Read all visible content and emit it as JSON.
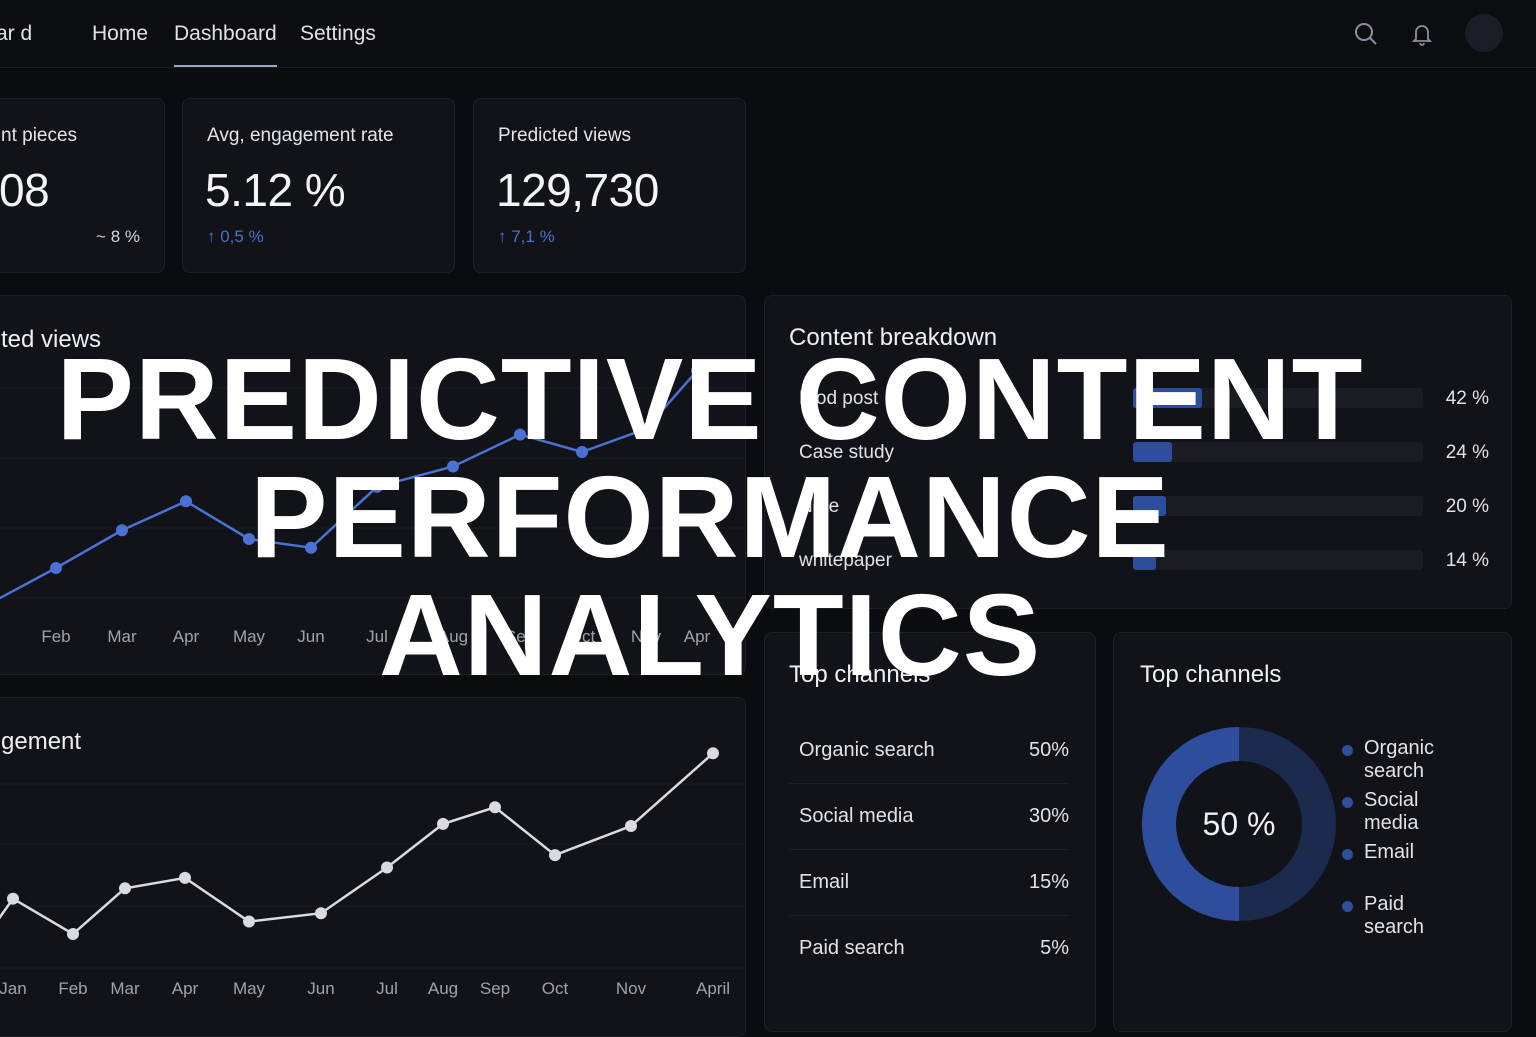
{
  "nav": {
    "brand": "ar d",
    "tabs": [
      {
        "label": "Home",
        "active": false
      },
      {
        "label": "Dashboard",
        "active": true
      },
      {
        "label": "Settings",
        "active": false
      }
    ],
    "icons": [
      "search-icon",
      "bell-icon",
      "avatar"
    ]
  },
  "kpis": [
    {
      "label": "nt pieces",
      "value": "08",
      "delta": "~ 8 %",
      "trend": "neutral"
    },
    {
      "label": "Avg, engagement rate",
      "value": "5.12 %",
      "delta": "↑ 0,5 %",
      "trend": "up"
    },
    {
      "label": "Predicted views",
      "value": "129,730",
      "delta": "↑ 7,1 %",
      "trend": "up"
    }
  ],
  "views_chart": {
    "title": "ted views",
    "chart_data": {
      "type": "line",
      "title": "ted views",
      "categories": [
        "Feb",
        "Mar",
        "Apr",
        "May",
        "Jun",
        "Jul",
        "Aug",
        "Sep",
        "Oct",
        "Nov",
        "Apr"
      ],
      "series": [
        {
          "values": [
            20,
            33,
            43,
            30,
            27,
            48,
            55,
            66,
            60,
            68,
            88
          ]
        }
      ],
      "ylim": [
        0,
        100
      ],
      "grid": true,
      "color": "#4a72d4"
    }
  },
  "engagement_chart": {
    "title": "gement",
    "chart_data": {
      "type": "line",
      "title": "gement",
      "categories": [
        "Jan",
        "Feb",
        "Mar",
        "Apr",
        "May",
        "Jun",
        "Jul",
        "Aug",
        "Sep",
        "Oct",
        "Nov",
        "April"
      ],
      "series": [
        {
          "values": [
            43,
            26,
            48,
            53,
            32,
            36,
            58,
            79,
            87,
            64,
            78,
            113
          ]
        }
      ],
      "ylim": [
        0,
        130
      ],
      "grid": true,
      "color": "#d8dbe2"
    }
  },
  "breakdown": {
    "title": "Content breakdown",
    "items": [
      {
        "label": "Blod post",
        "value": 42,
        "pct": "42 %"
      },
      {
        "label": "Case study",
        "value": 24,
        "pct": "24 %"
      },
      {
        "label": "Note",
        "value": 20,
        "pct": "20 %"
      },
      {
        "label": "whitepaper",
        "value": 14,
        "pct": "14 %"
      }
    ]
  },
  "channels_table": {
    "title": "Top channels",
    "rows": [
      {
        "name": "Organic search",
        "pct": "50%"
      },
      {
        "name": "Social media",
        "pct": "30%"
      },
      {
        "name": "Email",
        "pct": "15%"
      },
      {
        "name": "Paid search",
        "pct": "5%"
      }
    ]
  },
  "channels_donut": {
    "title": "Top channels",
    "center_label": "50 %",
    "chart_data": {
      "type": "pie",
      "title": "Top channels",
      "categories": [
        "Organic search",
        "Social media",
        "Email",
        "Paid search"
      ],
      "values": [
        50,
        30,
        15,
        5
      ],
      "highlight": 0.5,
      "colors": {
        "highlight": "#2e4d9c",
        "base": "#1b2a4d"
      }
    },
    "legend": [
      "Organic search",
      "Social media",
      "Email",
      "Paid search"
    ]
  },
  "overlay": {
    "lines": [
      "PREDICTIVE CONTENT",
      "PERFORMANCE",
      "ANALYTICS"
    ]
  }
}
